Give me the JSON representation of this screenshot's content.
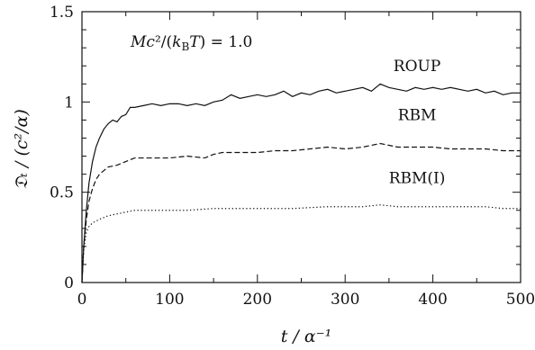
{
  "chart_data": {
    "type": "line",
    "title": "",
    "xlabel": "t / α⁻¹",
    "ylabel": "𝔇ₜ / (c²/α)",
    "xlim": [
      0,
      500
    ],
    "ylim": [
      0,
      1.5
    ],
    "xticks": [
      "0",
      "100",
      "200",
      "300",
      "400",
      "500"
    ],
    "yticks": [
      "0",
      "0.5",
      "1",
      "1.5"
    ],
    "annotation": "Mc²/(k_BT) = 1.0",
    "grid": false,
    "series": [
      {
        "name": "ROUP",
        "style": "solid",
        "x": [
          0,
          2,
          5,
          8,
          12,
          16,
          20,
          25,
          30,
          35,
          40,
          45,
          50,
          55,
          60,
          70,
          80,
          90,
          100,
          110,
          120,
          130,
          140,
          150,
          160,
          170,
          180,
          190,
          200,
          210,
          220,
          230,
          240,
          250,
          260,
          270,
          280,
          290,
          300,
          310,
          320,
          330,
          340,
          350,
          360,
          370,
          380,
          390,
          400,
          410,
          420,
          430,
          440,
          450,
          460,
          470,
          480,
          490,
          500
        ],
        "y": [
          0,
          0.2,
          0.4,
          0.55,
          0.67,
          0.75,
          0.8,
          0.85,
          0.88,
          0.9,
          0.89,
          0.92,
          0.93,
          0.97,
          0.97,
          0.98,
          0.99,
          0.98,
          0.99,
          0.99,
          0.98,
          0.99,
          0.98,
          1.0,
          1.01,
          1.04,
          1.02,
          1.03,
          1.04,
          1.03,
          1.04,
          1.06,
          1.03,
          1.05,
          1.04,
          1.06,
          1.07,
          1.05,
          1.06,
          1.07,
          1.08,
          1.06,
          1.1,
          1.08,
          1.07,
          1.06,
          1.08,
          1.07,
          1.08,
          1.07,
          1.08,
          1.07,
          1.06,
          1.07,
          1.05,
          1.06,
          1.04,
          1.05,
          1.05
        ]
      },
      {
        "name": "RBM",
        "style": "dashed",
        "x": [
          0,
          2,
          5,
          8,
          12,
          16,
          20,
          25,
          30,
          40,
          50,
          60,
          70,
          80,
          100,
          120,
          140,
          150,
          160,
          170,
          180,
          200,
          220,
          240,
          260,
          280,
          300,
          320,
          340,
          350,
          360,
          380,
          400,
          420,
          440,
          460,
          480,
          500
        ],
        "y": [
          0,
          0.2,
          0.35,
          0.45,
          0.52,
          0.57,
          0.6,
          0.62,
          0.64,
          0.65,
          0.67,
          0.69,
          0.69,
          0.69,
          0.69,
          0.7,
          0.69,
          0.71,
          0.72,
          0.72,
          0.72,
          0.72,
          0.73,
          0.73,
          0.74,
          0.75,
          0.74,
          0.75,
          0.77,
          0.76,
          0.75,
          0.75,
          0.75,
          0.74,
          0.74,
          0.74,
          0.73,
          0.73
        ]
      },
      {
        "name": "RBM(I)",
        "style": "dotted",
        "x": [
          0,
          2,
          5,
          8,
          12,
          16,
          20,
          25,
          30,
          40,
          50,
          60,
          80,
          100,
          120,
          150,
          180,
          200,
          240,
          280,
          300,
          320,
          340,
          360,
          380,
          400,
          420,
          440,
          460,
          480,
          500
        ],
        "y": [
          0,
          0.18,
          0.28,
          0.31,
          0.33,
          0.34,
          0.35,
          0.36,
          0.37,
          0.38,
          0.39,
          0.4,
          0.4,
          0.4,
          0.4,
          0.41,
          0.41,
          0.41,
          0.41,
          0.42,
          0.42,
          0.42,
          0.43,
          0.42,
          0.42,
          0.42,
          0.42,
          0.42,
          0.42,
          0.41,
          0.41
        ]
      }
    ]
  }
}
